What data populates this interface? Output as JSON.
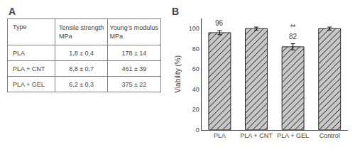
{
  "chart_data": [
    {
      "type": "table",
      "title": "A",
      "headers": [
        "Type",
        "Tensile strength\nMPa",
        "Young’s modulus\nMPa"
      ],
      "rows": [
        [
          "PLA",
          "1,8 ± 0,4",
          "178 ± 14"
        ],
        [
          "PLA + CNT",
          "8,8 ± 0,7",
          "461 ± 39"
        ],
        [
          "PLA + GEL",
          "6,2 ± 0,3",
          "375 ± 22"
        ]
      ]
    },
    {
      "type": "bar",
      "title": "B",
      "categories": [
        "PLA",
        "PLA + CNT",
        "PLA + GEL",
        "Control"
      ],
      "values": [
        96,
        100,
        82,
        100
      ],
      "errors": [
        2,
        1.5,
        3,
        1.5
      ],
      "annotations": [
        {
          "category": "PLA",
          "text": "96"
        },
        {
          "category": "PLA + GEL",
          "text": "**\n82"
        }
      ],
      "ylabel": "Viability (%)",
      "color": "#c8c8c8",
      "ylim": [
        0,
        110
      ],
      "yticks": [
        0,
        20,
        40,
        60,
        80,
        100
      ],
      "grid": false
    }
  ]
}
